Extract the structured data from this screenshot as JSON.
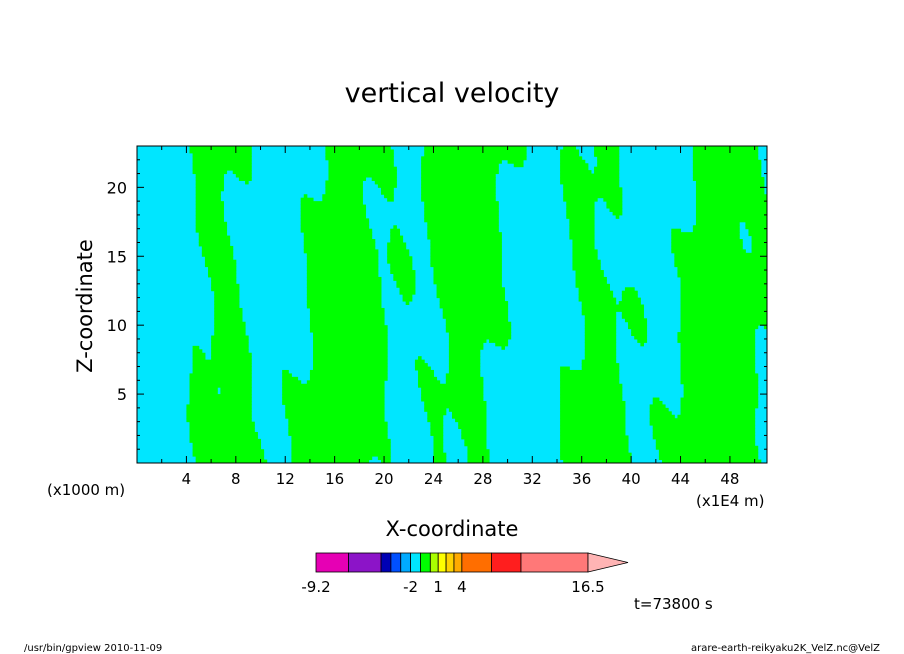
{
  "chart_data": {
    "type": "heatmap",
    "title": "vertical velocity",
    "xlabel": "X-coordinate",
    "ylabel": "Z-coordinate",
    "x_unit_left": "(x1000 m)",
    "x_unit_right": "(x1E4 m)",
    "xlim": [
      0,
      51
    ],
    "ylim": [
      0,
      23
    ],
    "x_ticks": [
      4,
      8,
      12,
      16,
      20,
      24,
      28,
      32,
      36,
      40,
      44,
      48
    ],
    "y_ticks": [
      5,
      10,
      15,
      20
    ],
    "x_tick_labels": [
      "4",
      "8",
      "12",
      "16",
      "20",
      "24",
      "28",
      "32",
      "36",
      "40",
      "44",
      "48"
    ],
    "y_tick_labels": [
      "5",
      "10",
      "15",
      "20"
    ],
    "fields": {
      "positive_color": "#00e6ff",
      "negative_color": "#00ff00",
      "contour_color": "#000000"
    },
    "colorbar": {
      "min_label": "-9.2",
      "max_label": "16.5",
      "tick_labels": [
        {
          "text": "-9.2",
          "value": -9.2
        },
        {
          "text": "-2",
          "value": -2
        },
        {
          "text": "1",
          "value": 1
        },
        {
          "text": "4",
          "value": 4
        },
        {
          "text": "16.5",
          "value": 16.5
        }
      ],
      "segments": [
        {
          "from": -9.2,
          "to": -7,
          "color": "#e600b4"
        },
        {
          "from": -7,
          "to": -5,
          "color": "#8c14c8"
        },
        {
          "from": -5,
          "to": -4,
          "color": "#0000b4"
        },
        {
          "from": -4,
          "to": -3,
          "color": "#0050ff"
        },
        {
          "from": -3,
          "to": -2,
          "color": "#00aaff"
        },
        {
          "from": -2,
          "to": -1,
          "color": "#00e6ff"
        },
        {
          "from": -1,
          "to": 0,
          "color": "#00ff00"
        },
        {
          "from": 0,
          "to": 1,
          "color": "#aaff00"
        },
        {
          "from": 1,
          "to": 2,
          "color": "#ffff00"
        },
        {
          "from": 2,
          "to": 3,
          "color": "#ffd200"
        },
        {
          "from": 3,
          "to": 4,
          "color": "#ffaa00"
        },
        {
          "from": 4,
          "to": 6,
          "color": "#ff6e00"
        },
        {
          "from": 6,
          "to": 8,
          "color": "#ff1e1e"
        },
        {
          "from": 8,
          "to": 16.5,
          "color": "#ff7878"
        }
      ],
      "extend_color": "#ffb4b4"
    },
    "time_label": "t=73800 s"
  },
  "footer": {
    "left": "/usr/bin/gpview   2010-11-09",
    "right": "arare-earth-reikyaku2K_VelZ.nc@VelZ"
  }
}
